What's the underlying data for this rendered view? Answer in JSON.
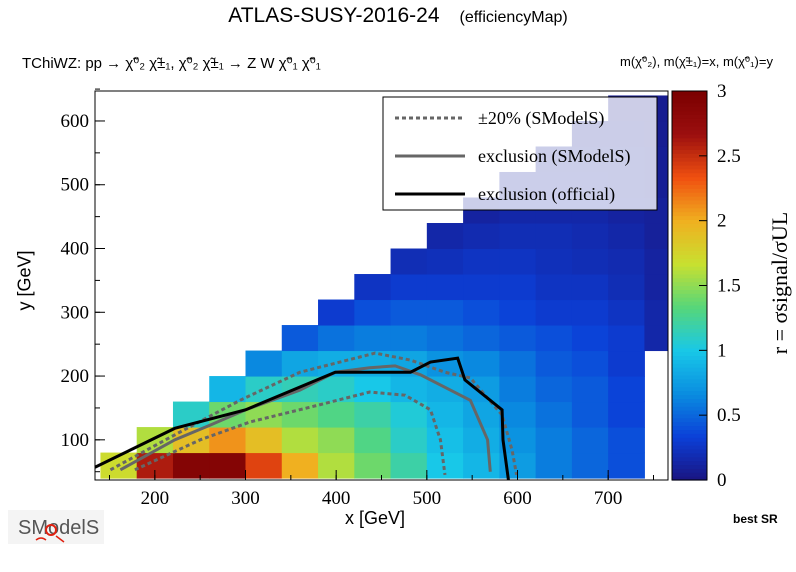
{
  "header": {
    "title": "ATLAS-SUSY-2016-24",
    "subtitle": "(efficiencyMap)",
    "process": "TChiWZ: pp → χ̃⁰₂ χ̃±₁, χ̃⁰₂ χ̃±₁ → Z W χ̃⁰₁ χ̃⁰₁",
    "masses": "m(χ̃⁰₂), m(χ̃±₁)=x, m(χ̃⁰₁)=y"
  },
  "footer": {
    "best_sr": "best SR",
    "logo_text": "SModelS"
  },
  "chart_data": {
    "type": "heatmap",
    "xlabel": "x [GeV]",
    "ylabel": "y [GeV]",
    "zlabel": "r = σsignal/σUL",
    "xlim": [
      134,
      766
    ],
    "ylim": [
      37,
      647
    ],
    "zlim": [
      0,
      3
    ],
    "xticks": [
      200,
      300,
      400,
      500,
      600,
      700
    ],
    "yticks": [
      100,
      200,
      300,
      400,
      500,
      600
    ],
    "zticks": [
      "0",
      "0.5",
      "1",
      "1.5",
      "2",
      "2.5",
      "3"
    ],
    "bin_width": 40,
    "x_centers": [
      160,
      200,
      240,
      280,
      320,
      360,
      400,
      440,
      480,
      520,
      560,
      600,
      640,
      680,
      720,
      760
    ],
    "y_centers": [
      60,
      100,
      140,
      180,
      220,
      260,
      300,
      340,
      380,
      420,
      460,
      500,
      540,
      580,
      620
    ],
    "z": [
      [
        1.7,
        2.6,
        2.9,
        2.9,
        2.4,
        2.0,
        1.6,
        1.4,
        1.2,
        1.0,
        0.9,
        0.75,
        0.6,
        0.5,
        0.4,
        null
      ],
      [
        null,
        1.6,
        1.9,
        2.1,
        1.9,
        1.6,
        1.5,
        1.3,
        1.1,
        0.95,
        0.85,
        0.7,
        0.6,
        0.5,
        0.4,
        null
      ],
      [
        null,
        null,
        1.1,
        1.4,
        1.5,
        1.4,
        1.3,
        1.2,
        1.05,
        0.9,
        0.8,
        0.65,
        0.55,
        0.45,
        0.35,
        null
      ],
      [
        null,
        null,
        null,
        0.9,
        1.1,
        1.15,
        1.1,
        1.0,
        0.9,
        0.85,
        0.75,
        0.6,
        0.5,
        0.45,
        0.35,
        null
      ],
      [
        null,
        null,
        null,
        null,
        0.65,
        0.8,
        0.85,
        0.85,
        0.8,
        0.7,
        0.65,
        0.55,
        0.45,
        0.4,
        0.3,
        null
      ],
      [
        null,
        null,
        null,
        null,
        null,
        0.45,
        0.55,
        0.6,
        0.6,
        0.55,
        0.5,
        0.45,
        0.4,
        0.35,
        0.3,
        0.15
      ],
      [
        null,
        null,
        null,
        null,
        null,
        null,
        0.3,
        0.4,
        0.45,
        0.45,
        0.4,
        0.35,
        0.3,
        0.3,
        0.25,
        0.15
      ],
      [
        null,
        null,
        null,
        null,
        null,
        null,
        null,
        0.25,
        0.3,
        0.3,
        0.3,
        0.3,
        0.25,
        0.25,
        0.2,
        0.12
      ],
      [
        null,
        null,
        null,
        null,
        null,
        null,
        null,
        null,
        0.2,
        0.22,
        0.25,
        0.25,
        0.22,
        0.2,
        0.18,
        0.12
      ],
      [
        null,
        null,
        null,
        null,
        null,
        null,
        null,
        null,
        null,
        0.15,
        0.18,
        0.2,
        0.2,
        0.18,
        0.15,
        0.1
      ],
      [
        null,
        null,
        null,
        null,
        null,
        null,
        null,
        null,
        null,
        null,
        0.12,
        0.15,
        0.15,
        0.15,
        0.12,
        0.1
      ],
      [
        null,
        null,
        null,
        null,
        null,
        null,
        null,
        null,
        null,
        null,
        null,
        0.12,
        0.12,
        0.12,
        0.1,
        0.08
      ],
      [
        null,
        null,
        null,
        null,
        null,
        null,
        null,
        null,
        null,
        null,
        null,
        null,
        0.1,
        0.1,
        0.1,
        0.08
      ],
      [
        null,
        null,
        null,
        null,
        null,
        null,
        null,
        null,
        null,
        null,
        null,
        null,
        null,
        0.08,
        0.08,
        0.07
      ],
      [
        null,
        null,
        null,
        null,
        null,
        null,
        null,
        null,
        null,
        null,
        null,
        null,
        null,
        null,
        0.07,
        0.06
      ]
    ],
    "contours": [
      {
        "name": "±20% (SModelS)",
        "style": "dotted",
        "color": "#666666",
        "paths": [
          [
            [
              151,
              53
            ],
            [
              217,
              104
            ],
            [
              294,
              162
            ],
            [
              360,
              206
            ],
            [
              443,
              236
            ],
            [
              482,
              225
            ],
            [
              520,
              206
            ],
            [
              548,
              197
            ],
            [
              583,
              139
            ],
            [
              594,
              84
            ],
            [
              599,
              45
            ]
          ],
          [
            [
              178,
              53
            ],
            [
              250,
              100
            ],
            [
              305,
              128
            ],
            [
              382,
              155
            ],
            [
              437,
              175
            ],
            [
              476,
              170
            ],
            [
              504,
              147
            ],
            [
              515,
              100
            ],
            [
              520,
              45
            ]
          ]
        ]
      },
      {
        "name": "exclusion (SModelS)",
        "style": "solid",
        "color": "#666666",
        "paths": [
          [
            [
              162,
              53
            ],
            [
              222,
              100
            ],
            [
              261,
              123
            ],
            [
              300,
              147
            ],
            [
              360,
              178
            ],
            [
              399,
              206
            ],
            [
              437,
              213
            ],
            [
              465,
              216
            ],
            [
              493,
              202
            ],
            [
              548,
              162
            ],
            [
              567,
              100
            ],
            [
              570,
              50
            ]
          ]
        ]
      },
      {
        "name": "exclusion (official)",
        "style": "solid",
        "color": "#000000",
        "paths": [
          [
            [
              134,
              57
            ],
            [
              173,
              84
            ],
            [
              222,
              118
            ],
            [
              300,
              147
            ],
            [
              399,
              206
            ],
            [
              482,
              206
            ],
            [
              504,
              222
            ],
            [
              534,
              228
            ],
            [
              542,
              194
            ],
            [
              583,
              147
            ],
            [
              584,
              100
            ],
            [
              590,
              37
            ]
          ]
        ]
      }
    ],
    "legend": {
      "position": "top-right",
      "entries": [
        "±20% (SModelS)",
        "exclusion (SModelS)",
        "exclusion (official)"
      ]
    },
    "colormap": [
      "#1a1480",
      "#0b3fd8",
      "#0a8de0",
      "#18c8e8",
      "#56d67a",
      "#c8e030",
      "#f0b020",
      "#f05010",
      "#9c0f0f",
      "#7a0000"
    ]
  }
}
